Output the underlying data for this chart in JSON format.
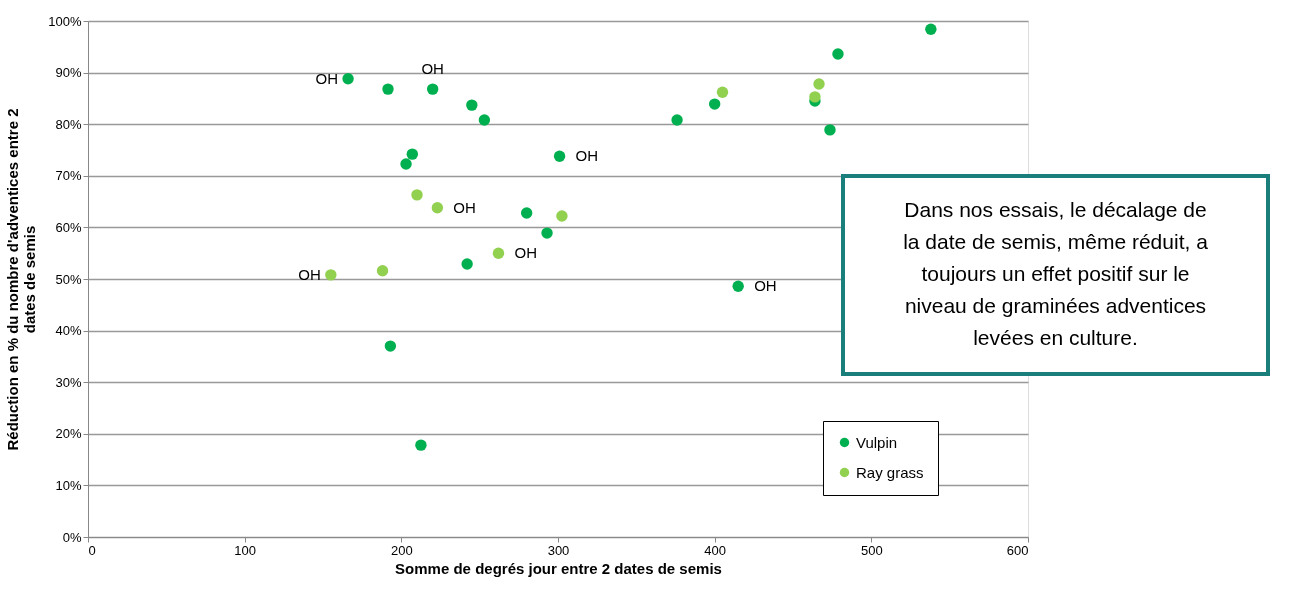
{
  "chart_data": {
    "type": "scatter",
    "xlabel": "Somme  de degrés jour entre 2 dates de semis",
    "ylabel": "Réduction en % du nombre d'adventices entre 2 dates de semis",
    "xlim": [
      0,
      600
    ],
    "xticks": [
      0,
      100,
      200,
      300,
      400,
      500,
      600
    ],
    "ylim": [
      0,
      100
    ],
    "yticks": [
      {
        "value": 0,
        "label": "0%"
      },
      {
        "value": 10,
        "label": "10%"
      },
      {
        "value": 20,
        "label": "20%"
      },
      {
        "value": 30,
        "label": "30%"
      },
      {
        "value": 40,
        "label": "40%"
      },
      {
        "value": 50,
        "label": "50%"
      },
      {
        "value": 60,
        "label": "60%"
      },
      {
        "value": 70,
        "label": "70%"
      },
      {
        "value": 80,
        "label": "80%"
      },
      {
        "value": 90,
        "label": "90%"
      },
      {
        "value": 100,
        "label": "100%"
      }
    ],
    "grid": "y",
    "legend": "bottom right",
    "marker": "circle",
    "series": [
      {
        "name": "Vulpin",
        "color": "#00b050",
        "x": [
          166,
          191.5,
          220,
          245,
          253,
          207,
          203,
          301,
          280,
          293,
          242,
          193,
          212.5,
          376,
          400,
          415,
          464,
          473.6,
          478.7,
          538
        ],
        "values": [
          88.8,
          86.8,
          86.8,
          83.7,
          80.8,
          74.2,
          72.3,
          73.8,
          62.8,
          58.9,
          52.9,
          37.0,
          17.8,
          80.8,
          83.9,
          48.6,
          84.5,
          78.9,
          93.6,
          98.4
        ]
      },
      {
        "name": "Ray grass",
        "color": "#92d050",
        "x": [
          405,
          466.6,
          464,
          210,
          223,
          302.5,
          262,
          188,
          155
        ],
        "values": [
          86.2,
          87.8,
          85.3,
          66.3,
          63.8,
          62.2,
          55.0,
          51.6,
          50.8
        ]
      }
    ],
    "annotations": [
      {
        "text": "OH",
        "x": 166,
        "y": 88.8
      },
      {
        "text": "OH",
        "x": 220,
        "y": 86.8
      },
      {
        "text": "OH",
        "x": 301,
        "y": 73.8
      },
      {
        "text": "OH",
        "x": 223,
        "y": 63.8
      },
      {
        "text": "OH",
        "x": 262,
        "y": 55.0
      },
      {
        "text": "OH",
        "x": 155,
        "y": 50.8
      },
      {
        "text": "OH",
        "x": 415,
        "y": 48.6
      },
      "Dans nos essais, le décalage de la date de semis, même réduit, a toujours un effet positif sur le niveau de graminées adventices levées en culture."
    ]
  }
}
